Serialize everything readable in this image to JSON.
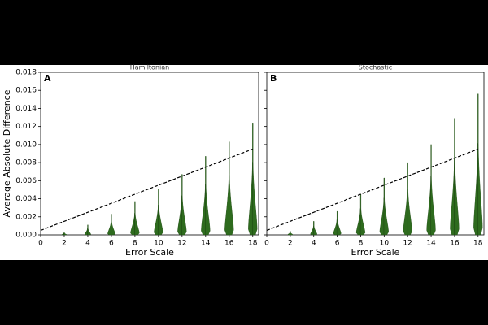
{
  "chart_data": [
    {
      "type": "violin",
      "title": "Hamiltonian",
      "panel_label": "A",
      "x_label": "Error Scale",
      "y_label": "Average Absolute Difference",
      "x": [
        2,
        4,
        6,
        8,
        10,
        12,
        14,
        16,
        18
      ],
      "values": [
        0.0003,
        0.0011,
        0.0023,
        0.0037,
        0.0051,
        0.0067,
        0.0087,
        0.0103,
        0.0124
      ],
      "color": "#2e6b1e",
      "reference_line": {
        "x": [
          0,
          18
        ],
        "values": [
          0.0005,
          0.0095
        ]
      },
      "xlim": [
        0,
        18.5
      ],
      "ylim": [
        0,
        0.018
      ],
      "xticks": [
        0,
        2,
        4,
        6,
        8,
        10,
        12,
        14,
        16,
        18
      ],
      "yticks": [
        {
          "value": 0,
          "label": "0.000"
        },
        0.002,
        0.004,
        0.006,
        0.008,
        {
          "value": 0.01,
          "label": "0.010"
        },
        0.012,
        0.014,
        0.016,
        0.018
      ]
    },
    {
      "type": "violin",
      "title": "Stochastic",
      "panel_label": "B",
      "x_label": "Error Scale",
      "x": [
        2,
        4,
        6,
        8,
        10,
        12,
        14,
        16,
        18
      ],
      "values": [
        0.0004,
        0.0015,
        0.0026,
        0.0045,
        0.0063,
        0.008,
        0.01,
        0.0129,
        0.0156
      ],
      "color": "#2e6b1e",
      "reference_line": {
        "x": [
          0,
          18
        ],
        "values": [
          0.0005,
          0.0095
        ]
      },
      "xlim": [
        0,
        18.5
      ],
      "ylim": [
        0,
        0.018
      ],
      "xticks": [
        0,
        2,
        4,
        6,
        8,
        10,
        12,
        14,
        16,
        18
      ]
    }
  ]
}
